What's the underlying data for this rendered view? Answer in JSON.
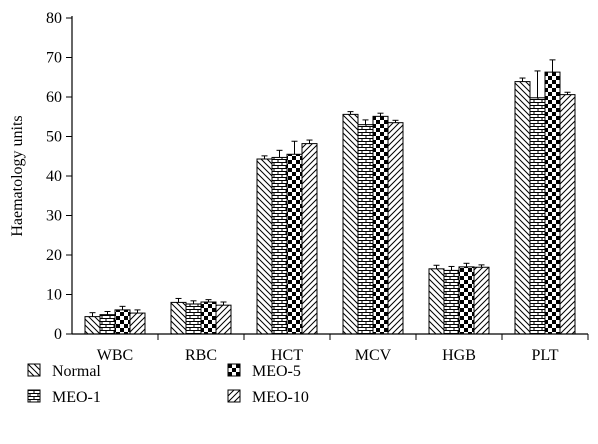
{
  "chart_data": {
    "type": "bar",
    "title": "",
    "xlabel": "",
    "ylabel": "Haematology units",
    "ylim": [
      0,
      80
    ],
    "yticks": [
      0,
      10,
      20,
      30,
      40,
      50,
      60,
      70,
      80
    ],
    "grid": false,
    "legend_position": "bottom-left",
    "categories": [
      "WBC",
      "RBC",
      "HCT",
      "MCV",
      "HGB",
      "PLT"
    ],
    "series": [
      {
        "name": "Normal",
        "pattern": "diagonal-left",
        "values": [
          4.4,
          8.0,
          44.3,
          55.6,
          16.5,
          63.9
        ],
        "errors": [
          1.0,
          1.0,
          0.8,
          0.7,
          0.9,
          0.9
        ]
      },
      {
        "name": "MEO-1",
        "pattern": "brick",
        "values": [
          4.9,
          7.6,
          44.7,
          53.0,
          16.1,
          59.8
        ],
        "errors": [
          0.8,
          0.8,
          1.8,
          1.2,
          1.0,
          6.8
        ]
      },
      {
        "name": "MEO-5",
        "pattern": "checker",
        "values": [
          6.1,
          8.1,
          45.5,
          55.1,
          17.0,
          66.3
        ],
        "errors": [
          0.9,
          0.6,
          3.3,
          0.8,
          0.9,
          3.1
        ]
      },
      {
        "name": "MEO-10",
        "pattern": "diagonal-right",
        "values": [
          5.3,
          7.3,
          48.2,
          53.5,
          16.9,
          60.6
        ],
        "errors": [
          0.8,
          0.8,
          0.9,
          0.6,
          0.6,
          0.6
        ]
      }
    ]
  }
}
